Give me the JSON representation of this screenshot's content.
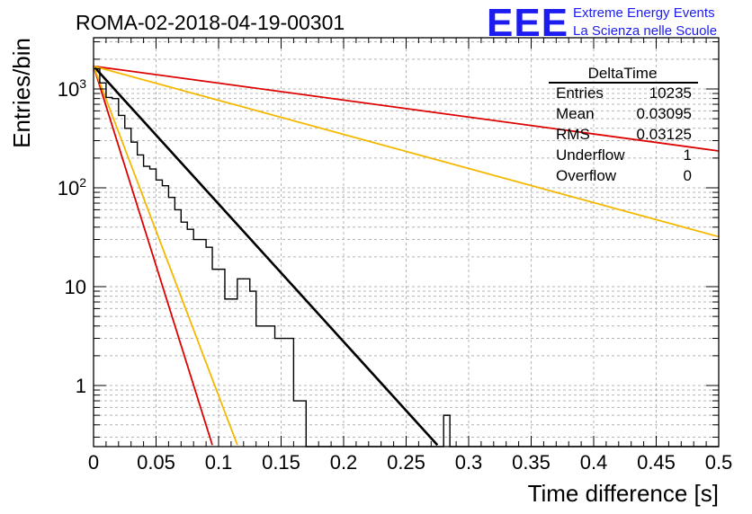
{
  "header": {
    "run_title": "ROMA-02-2018-04-19-00301",
    "logo_letters": "EEE",
    "logo_line1": "Extreme Energy Events",
    "logo_line2": "La Scienza nelle Scuole",
    "brand_color": "#1c1cf0"
  },
  "stats": {
    "title": "DeltaTime",
    "rows": [
      {
        "label": "Entries",
        "value": "10235"
      },
      {
        "label": "Mean",
        "value": "0.03095"
      },
      {
        "label": "RMS",
        "value": "0.03125"
      },
      {
        "label": "Underflow",
        "value": "1"
      },
      {
        "label": "Overflow",
        "value": "0"
      }
    ]
  },
  "chart_data": {
    "type": "line",
    "title": "ROMA-02-2018-04-19-00301",
    "xlabel": "Time difference [s]",
    "ylabel": "Entries/bin",
    "xlim": [
      0,
      0.5
    ],
    "ylim": [
      0.25,
      3000
    ],
    "yscale": "log",
    "grid": true,
    "x_ticks": [
      "0",
      "0.05",
      "0.1",
      "0.15",
      "0.2",
      "0.25",
      "0.3",
      "0.35",
      "0.4",
      "0.45",
      "0.5"
    ],
    "y_ticks": [
      {
        "value": 1,
        "label": "1"
      },
      {
        "value": 10,
        "label": "10"
      },
      {
        "value": 100,
        "label": "10",
        "exp": "2"
      },
      {
        "value": 1000,
        "label": "10",
        "exp": "3"
      }
    ],
    "histogram": {
      "name": "DeltaTime",
      "color": "#000000",
      "bin_width": 0.005,
      "x_start": 0.0,
      "counts": [
        1600,
        1150,
        820,
        800,
        540,
        400,
        290,
        215,
        165,
        155,
        120,
        105,
        80,
        60,
        45,
        38,
        30,
        30,
        25,
        15,
        15,
        7.5,
        7.5,
        12,
        12,
        9,
        4,
        4,
        4,
        3,
        3,
        3,
        0.7,
        0.7,
        0,
        0,
        0,
        0,
        0,
        0,
        0,
        0,
        0,
        0,
        0,
        0,
        0,
        0,
        0,
        0,
        0,
        0,
        0,
        0,
        0,
        0,
        0.5,
        0,
        0,
        0,
        0,
        0,
        0,
        0,
        0,
        0,
        0,
        0,
        0,
        0,
        0,
        0,
        0,
        0,
        0,
        0,
        0,
        0,
        0,
        0,
        0,
        0,
        0,
        0,
        0,
        0,
        0,
        0,
        0,
        0,
        0,
        0,
        0,
        0,
        0,
        0,
        0,
        0,
        0,
        0
      ]
    },
    "series": [
      {
        "name": "exponential fit",
        "color": "#000000",
        "x": [
          0.0,
          0.275
        ],
        "values": [
          1700,
          0.25
        ]
      },
      {
        "name": "red (steep)",
        "color": "#dd0000",
        "x": [
          0.0,
          0.095
        ],
        "values": [
          1700,
          0.25
        ]
      },
      {
        "name": "yellow (steep)",
        "color": "#f5b800",
        "x": [
          0.0,
          0.115
        ],
        "values": [
          1700,
          0.25
        ]
      },
      {
        "name": "red (shallow)",
        "color": "#dd0000",
        "x": [
          0.0,
          0.5
        ],
        "values": [
          1700,
          236
        ]
      },
      {
        "name": "yellow (shallow)",
        "color": "#f5b800",
        "x": [
          0.0,
          0.5
        ],
        "values": [
          1700,
          32
        ]
      }
    ]
  }
}
